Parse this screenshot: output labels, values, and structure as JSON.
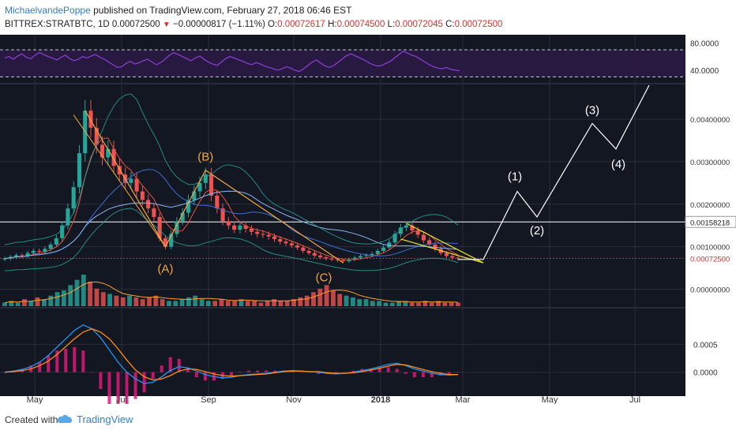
{
  "header": {
    "author": "MichaelvandePoppe",
    "published": "published on TradingView.com, February 27, 2018 06:46 EST",
    "symbol": "BITTREX:STRATBTC, 1D",
    "last": "0.00072500",
    "change": "−0.00000817 (−1.11%)",
    "open_label": "O:",
    "open": "0.00072617",
    "high_label": "H:",
    "high": "0.00074500",
    "low_label": "L:",
    "low": "0.00072045",
    "close_label": "C:",
    "close": "0.00072500"
  },
  "footer": {
    "created_with": "Created with",
    "brand": "TradingView"
  },
  "colors": {
    "background": "#131722",
    "grid": "#2a2e39",
    "candle_up": "#26a69a",
    "candle_down": "#ef5350",
    "rsi_line": "#8e3fd8",
    "macd_line": "#2196f3",
    "signal_line": "#ff8c1a",
    "wave_abc": "#f5a742",
    "wave_12345": "#ffffff",
    "wedge": "#e6e62e",
    "price_level": "#e0302e"
  },
  "chart_data": [
    {
      "type": "line",
      "panel": "rsi",
      "y_ticks": [
        "80.0000",
        "40.0000"
      ],
      "bands": [
        70,
        30
      ],
      "ylim": [
        20,
        90
      ],
      "values": [
        58,
        60,
        56,
        61,
        64,
        59,
        57,
        62,
        66,
        63,
        60,
        58,
        55,
        59,
        62,
        57,
        54,
        56,
        60,
        58,
        61,
        63,
        59,
        56,
        52,
        48,
        44,
        45,
        50,
        53,
        49,
        51,
        54,
        56,
        52,
        48,
        51,
        56,
        62,
        66,
        63,
        60,
        57,
        54,
        58,
        61,
        56,
        52,
        49,
        47,
        52,
        57,
        60,
        58,
        55,
        53,
        50,
        48,
        51,
        49,
        46,
        44,
        42,
        40,
        42,
        45,
        43,
        40,
        38,
        42,
        47,
        52,
        55,
        50,
        46,
        44,
        47,
        52,
        57,
        62,
        64,
        61,
        58,
        55,
        51,
        48,
        46,
        47,
        50,
        53,
        58,
        63,
        68,
        65,
        62,
        60,
        56,
        52,
        48,
        45,
        43,
        42,
        44,
        41,
        40,
        39
      ]
    },
    {
      "type": "candlestick",
      "panel": "price",
      "y_ticks": [
        "0.00400000",
        "0.00300000",
        "0.00200000",
        "0.00100000",
        "0.00000000"
      ],
      "x_ticks": [
        "May",
        "Jul",
        "Sep",
        "Nov",
        "2018",
        "Mar",
        "May",
        "Jul"
      ],
      "ylim": [
        -0.0004,
        0.0048
      ],
      "close_series": [
        0.00072,
        0.00076,
        0.0008,
        0.00078,
        0.00085,
        0.0009,
        0.00088,
        0.00095,
        0.00105,
        0.0012,
        0.0015,
        0.0019,
        0.0024,
        0.0032,
        0.0042,
        0.0038,
        0.0034,
        0.0031,
        0.0033,
        0.0029,
        0.0027,
        0.0025,
        0.0026,
        0.0023,
        0.0021,
        0.0019,
        0.0017,
        0.0012,
        0.001,
        0.0013,
        0.0016,
        0.0018,
        0.0021,
        0.0023,
        0.0025,
        0.0027,
        0.0022,
        0.0019,
        0.0016,
        0.0015,
        0.0014,
        0.0015,
        0.00142,
        0.00135,
        0.0013,
        0.00128,
        0.00124,
        0.00118,
        0.00112,
        0.00108,
        0.00103,
        0.00098,
        0.0009,
        0.00085,
        0.00079,
        0.00075,
        0.00072,
        0.0007,
        0.00068,
        0.00066,
        0.0007,
        0.00074,
        0.00078,
        0.0008,
        0.00083,
        0.0009,
        0.00098,
        0.0011,
        0.0013,
        0.00145,
        0.0015,
        0.00138,
        0.00128,
        0.00115,
        0.00105,
        0.00095,
        0.00085,
        0.00078,
        0.00074,
        0.00072
      ],
      "levels": [
        {
          "label": "0.00158218",
          "value": 0.00158218,
          "color": "#ffffff"
        },
        {
          "label": "0.00072500",
          "value": 0.000725,
          "color": "#e0302e"
        }
      ],
      "wave_labels": [
        {
          "label": "(A)",
          "x": "Jul",
          "value": 0.0008
        },
        {
          "label": "(B)",
          "x": "Aug",
          "value": 0.0028
        },
        {
          "label": "(C)",
          "x": "Nov",
          "value": 0.0003
        },
        {
          "label": "(1)",
          "x": "Apr",
          "value": 0.0023
        },
        {
          "label": "(2)",
          "x": "Apr",
          "value": 0.0017
        },
        {
          "label": "(3)",
          "x": "Jun",
          "value": 0.0039
        },
        {
          "label": "(4)",
          "x": "Jun",
          "value": 0.0033
        }
      ],
      "projection": [
        {
          "x": "Mar",
          "value": 0.0007
        },
        {
          "x": "Apr",
          "value": 0.0023
        },
        {
          "x": "Apr",
          "value": 0.0017
        },
        {
          "x": "Jun",
          "value": 0.0039
        },
        {
          "x": "Jun",
          "value": 0.0033
        },
        {
          "x": "Jul",
          "value": 0.0048
        }
      ]
    },
    {
      "type": "bar",
      "panel": "volume",
      "values": [
        2,
        3,
        2,
        4,
        3,
        5,
        4,
        6,
        8,
        9,
        12,
        15,
        18,
        14,
        10,
        8,
        7,
        6,
        5,
        6,
        5,
        4,
        5,
        6,
        4,
        3,
        3,
        4,
        5,
        6,
        4,
        3,
        3,
        4,
        3,
        3,
        4,
        3,
        3,
        2,
        3,
        4,
        3,
        3,
        4,
        5,
        6,
        8,
        10,
        12,
        9,
        7,
        6,
        5,
        4,
        4,
        3,
        3,
        2,
        2,
        3,
        3,
        2,
        2,
        3,
        2,
        3,
        2,
        2,
        2
      ]
    },
    {
      "type": "line",
      "panel": "macd",
      "y_ticks": [
        "0.0005",
        "0.0000"
      ],
      "ylim": [
        -0.0004,
        0.0011
      ],
      "series": [
        {
          "values": [
            0,
            2e-05,
            5e-05,
            0.0001,
            0.00018,
            0.0003,
            0.00045,
            0.0006,
            0.00075,
            0.00085,
            0.00078,
            0.00062,
            0.0004,
            0.00018,
            0,
            -0.00012,
            -0.0002,
            -0.00018,
            -8e-05,
            3e-05,
            0.0001,
            8e-05,
            2e-05,
            -4e-05,
            -8e-05,
            -0.0001,
            -9e-05,
            -6e-05,
            -4e-05,
            -3e-05,
            -2e-05,
            0,
            2e-05,
            3e-05,
            2e-05,
            1e-05,
            0,
            -2e-05,
            -3e-05,
            -2e-05,
            0,
            3e-05,
            6e-05,
            0.0001,
            0.00014,
            0.00016,
            0.00012,
            6e-05,
            2e-05,
            -2e-05,
            -4e-05,
            -5e-05,
            -4e-05
          ]
        },
        {
          "values": [
            0,
            1e-05,
            3e-05,
            6e-05,
            0.00012,
            0.0002,
            0.00032,
            0.00046,
            0.0006,
            0.00072,
            0.00078,
            0.00072,
            0.0006,
            0.00042,
            0.00022,
            4e-05,
            -8e-05,
            -0.00014,
            -0.00012,
            -6e-05,
            2e-05,
            6e-05,
            5e-05,
            1e-05,
            -3e-05,
            -6e-05,
            -7e-05,
            -6e-05,
            -5e-05,
            -4e-05,
            -3e-05,
            -1e-05,
            1e-05,
            2e-05,
            2e-05,
            1e-05,
            1e-05,
            -1e-05,
            -2e-05,
            -2e-05,
            -1e-05,
            1e-05,
            4e-05,
            7e-05,
            0.00011,
            0.00014,
            0.00013,
            9e-05,
            5e-05,
            1e-05,
            -2e-05,
            -4e-05,
            -4e-05
          ]
        }
      ]
    }
  ]
}
